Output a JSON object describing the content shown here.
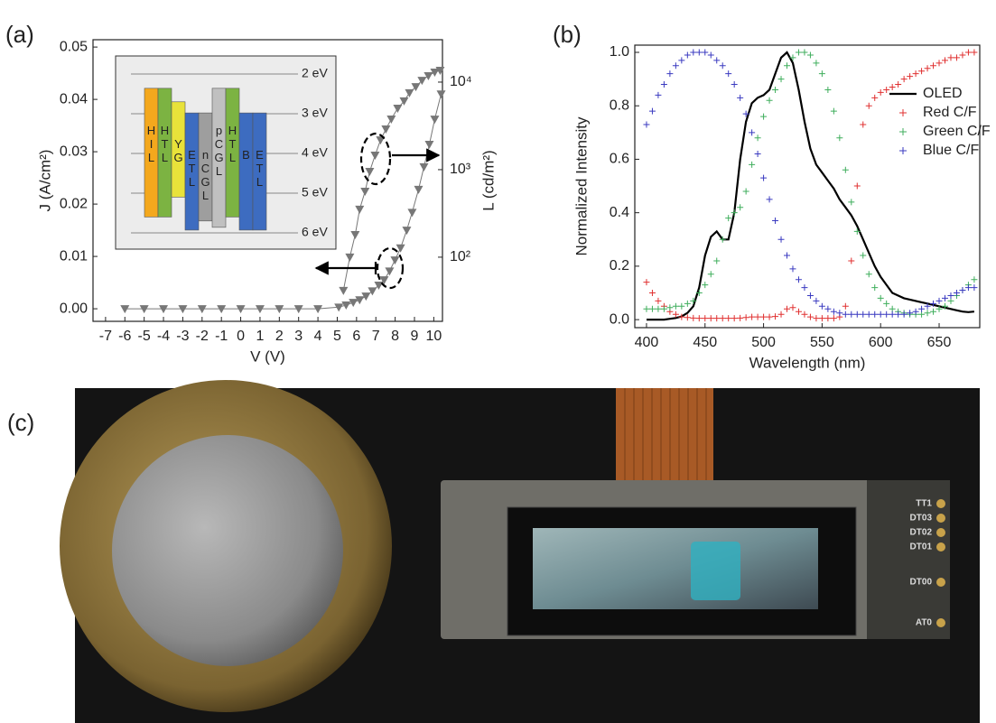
{
  "chart_data": [
    {
      "type": "line",
      "panel_label": "(a)",
      "xlabel": "V (V)",
      "ylabel": "J (A/cm²)",
      "y2label": "L (cd/m²)",
      "xlim": [
        -7.65,
        10.45
      ],
      "xticks": [
        -7,
        -6,
        -5,
        -4,
        -3,
        -2,
        -1,
        0,
        1,
        2,
        3,
        4,
        5,
        6,
        7,
        8,
        9,
        10
      ],
      "ylim": [
        -0.0024,
        0.0514
      ],
      "yticks": [
        {
          "value": 0,
          "label": "0.00"
        },
        {
          "value": 0.01,
          "label": "0.01"
        },
        {
          "value": 0.02,
          "label": "0.02"
        },
        {
          "value": 0.03,
          "label": "0.03"
        },
        {
          "value": 0.04,
          "label": "0.04"
        },
        {
          "value": 0.05,
          "label": "0.05"
        }
      ],
      "y2lim": [
        18.5,
        30500
      ],
      "y2log": true,
      "y2ticks": [
        {
          "value": 100,
          "label": "10²"
        },
        {
          "value": 1000,
          "label": "10³"
        },
        {
          "value": 10000,
          "label": "10⁴"
        }
      ],
      "series": [
        {
          "style": "line-markers",
          "color": "#777777",
          "x": [
            -6,
            -5,
            -4,
            -3,
            -2,
            -1,
            0,
            1,
            2,
            3,
            4,
            5.08,
            5.46,
            5.83,
            6.16,
            6.49,
            6.82,
            7.15,
            7.43,
            7.71,
            7.99,
            8.28,
            8.6,
            8.88,
            9.21,
            9.49,
            9.77,
            10.05,
            10.38
          ],
          "values": [
            0,
            0,
            0,
            0,
            0,
            0,
            0,
            0,
            0,
            0,
            0,
            0.0003,
            0.0007,
            0.0012,
            0.0017,
            0.0024,
            0.0034,
            0.0045,
            0.0055,
            0.0072,
            0.0093,
            0.0116,
            0.015,
            0.0184,
            0.0228,
            0.0271,
            0.0314,
            0.0362,
            0.041
          ]
        },
        {
          "style": "line-markers",
          "color": "#777777",
          "axis": "y2",
          "x": [
            5.32,
            5.65,
            5.93,
            6.16,
            6.44,
            6.68,
            6.96,
            7.24,
            7.52,
            7.8,
            8.13,
            8.46,
            8.74,
            9.07,
            9.39,
            9.72,
            10.05,
            10.33
          ],
          "values": [
            41.6,
            100,
            181,
            352,
            565,
            953,
            1460,
            2180,
            2910,
            3780,
            5020,
            6080,
            7540,
            8860,
            10450,
            11800,
            12960,
            13600
          ]
        }
      ],
      "inset": {
        "levels": [
          {
            "value": 2,
            "label": "2 eV"
          },
          {
            "value": 3,
            "label": "3 eV"
          },
          {
            "value": 4,
            "label": "4 eV"
          },
          {
            "value": 5,
            "label": "5 eV"
          },
          {
            "value": 6,
            "label": "6 eV"
          }
        ],
        "layers": [
          {
            "label": "HIL",
            "color": "#f4a81d",
            "top": 2.36,
            "bottom": 5.6
          },
          {
            "label": "HTL",
            "color": "#7cb342",
            "top": 2.36,
            "bottom": 5.6
          },
          {
            "label": "YG",
            "color": "#e8e23a",
            "top": 2.7,
            "bottom": 5.1
          },
          {
            "label": "ETL",
            "color": "#3d6cc0",
            "top": 2.98,
            "bottom": 5.93
          },
          {
            "label": "nCGL",
            "color": "#9e9e9e",
            "top": 2.98,
            "bottom": 5.7
          },
          {
            "label": "pCGL",
            "color": "#c0c0c0",
            "top": 2.36,
            "bottom": 5.86
          },
          {
            "label": "HTL",
            "color": "#7cb342",
            "top": 2.36,
            "bottom": 5.6
          },
          {
            "label": "B",
            "color": "#3d6cc0",
            "top": 2.98,
            "bottom": 5.93
          },
          {
            "label": "ETL",
            "color": "#3d6cc0",
            "top": 2.98,
            "bottom": 5.93
          }
        ]
      }
    },
    {
      "type": "line",
      "panel_label": "(b)",
      "xlabel": "Wavelength (nm)",
      "ylabel": "Normalized Intensity",
      "xlim": [
        390,
        684.7
      ],
      "xticks": [
        400,
        450,
        500,
        550,
        600,
        650
      ],
      "ylim": [
        -0.03,
        1.027
      ],
      "yticks": [
        {
          "value": 0,
          "label": "0.0"
        },
        {
          "value": 0.2,
          "label": "0.2"
        },
        {
          "value": 0.4,
          "label": "0.4"
        },
        {
          "value": 0.6,
          "label": "0.6"
        },
        {
          "value": 0.8,
          "label": "0.8"
        },
        {
          "value": 1,
          "label": "1.0"
        }
      ],
      "legend": "upper right",
      "x": [
        400,
        405,
        410,
        415,
        420,
        425,
        430,
        435,
        440,
        445,
        450,
        455,
        460,
        465,
        470,
        475,
        480,
        485,
        490,
        495,
        500,
        505,
        510,
        515,
        520,
        525,
        530,
        535,
        540,
        545,
        550,
        555,
        560,
        565,
        570,
        575,
        580,
        585,
        590,
        595,
        600,
        605,
        610,
        615,
        620,
        625,
        630,
        635,
        640,
        645,
        650,
        655,
        660,
        665,
        670,
        675,
        680
      ],
      "series": [
        {
          "name": "OLED",
          "style": "line",
          "color": "#000000",
          "values": [
            0,
            0,
            0,
            0,
            0.003,
            0.006,
            0.012,
            0.025,
            0.05,
            0.12,
            0.24,
            0.31,
            0.33,
            0.3,
            0.3,
            0.4,
            0.6,
            0.74,
            0.81,
            0.83,
            0.84,
            0.86,
            0.92,
            0.98,
            1.0,
            0.96,
            0.86,
            0.74,
            0.64,
            0.58,
            0.55,
            0.52,
            0.49,
            0.45,
            0.42,
            0.39,
            0.35,
            0.3,
            0.25,
            0.2,
            0.16,
            0.13,
            0.1,
            0.09,
            0.08,
            0.075,
            0.07,
            0.065,
            0.06,
            0.055,
            0.05,
            0.045,
            0.04,
            0.035,
            0.03,
            0.028,
            0.03
          ]
        },
        {
          "name": "Red C/F",
          "style": "markers",
          "color": "#e03030",
          "values": [
            0.14,
            0.1,
            0.07,
            0.05,
            0.03,
            0.02,
            0.01,
            0.008,
            0.006,
            0.005,
            0.005,
            0.005,
            0.005,
            0.005,
            0.005,
            0.005,
            0.006,
            0.008,
            0.01,
            0.01,
            0.01,
            0.01,
            0.012,
            0.02,
            0.04,
            0.045,
            0.03,
            0.02,
            0.01,
            0.005,
            0.005,
            0.005,
            0.005,
            0.01,
            0.05,
            0.22,
            0.5,
            0.73,
            0.8,
            0.83,
            0.85,
            0.86,
            0.87,
            0.88,
            0.9,
            0.91,
            0.92,
            0.93,
            0.94,
            0.95,
            0.96,
            0.97,
            0.98,
            0.98,
            0.99,
            1.0,
            1.0
          ]
        },
        {
          "name": "Green C/F",
          "style": "markers",
          "color": "#3fae5c",
          "values": [
            0.04,
            0.04,
            0.04,
            0.04,
            0.045,
            0.05,
            0.05,
            0.06,
            0.07,
            0.1,
            0.13,
            0.17,
            0.22,
            0.3,
            0.38,
            0.4,
            0.42,
            0.48,
            0.58,
            0.68,
            0.76,
            0.82,
            0.86,
            0.9,
            0.95,
            0.98,
            1.0,
            1.0,
            0.99,
            0.96,
            0.92,
            0.86,
            0.78,
            0.68,
            0.56,
            0.44,
            0.33,
            0.24,
            0.17,
            0.12,
            0.08,
            0.06,
            0.04,
            0.03,
            0.025,
            0.02,
            0.02,
            0.02,
            0.025,
            0.03,
            0.04,
            0.05,
            0.07,
            0.09,
            0.11,
            0.13,
            0.15
          ]
        },
        {
          "name": "Blue C/F",
          "style": "markers",
          "color": "#3a3ac0",
          "values": [
            0.73,
            0.78,
            0.84,
            0.88,
            0.92,
            0.95,
            0.97,
            0.99,
            1.0,
            1.0,
            1.0,
            0.99,
            0.97,
            0.95,
            0.92,
            0.88,
            0.83,
            0.77,
            0.7,
            0.62,
            0.53,
            0.45,
            0.37,
            0.3,
            0.24,
            0.19,
            0.15,
            0.12,
            0.09,
            0.07,
            0.05,
            0.04,
            0.03,
            0.025,
            0.02,
            0.02,
            0.02,
            0.02,
            0.02,
            0.02,
            0.02,
            0.02,
            0.02,
            0.02,
            0.02,
            0.025,
            0.03,
            0.04,
            0.05,
            0.06,
            0.07,
            0.08,
            0.09,
            0.1,
            0.11,
            0.12,
            0.12
          ]
        }
      ]
    }
  ],
  "photo": {
    "panel_label": "(c)",
    "pad_labels": [
      "TT1",
      "DT03",
      "DT02",
      "DT01",
      "DT00",
      "AT0"
    ]
  }
}
